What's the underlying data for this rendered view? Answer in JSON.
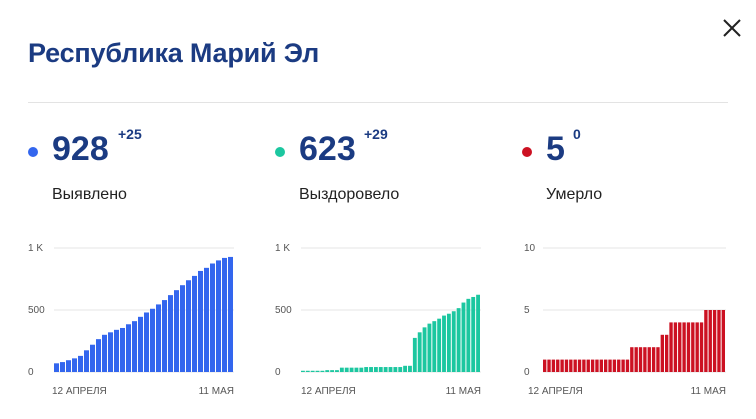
{
  "header": {
    "title": "Республика Марий Эл",
    "close_icon": "close-icon"
  },
  "stats": [
    {
      "key": "cases",
      "value": "928",
      "delta": "+25",
      "label": "Выявлено",
      "color": "#3366ee"
    },
    {
      "key": "recovered",
      "value": "623",
      "delta": "+29",
      "label": "Выздоровело",
      "color": "#1cc7a0"
    },
    {
      "key": "deaths",
      "value": "5",
      "delta": "0",
      "label": "Умерло",
      "color": "#cc1122"
    }
  ],
  "chart_data": [
    {
      "type": "bar",
      "series": [
        {
          "name": "Выявлено",
          "values": [
            70,
            80,
            95,
            110,
            130,
            175,
            220,
            265,
            300,
            320,
            340,
            355,
            385,
            410,
            445,
            480,
            510,
            545,
            580,
            620,
            660,
            700,
            740,
            775,
            815,
            840,
            875,
            900,
            920,
            928
          ]
        }
      ],
      "y_ticks": [
        "0",
        "500",
        "1 K"
      ],
      "y_tick_values": [
        0,
        500,
        1000
      ],
      "ylim": [
        0,
        1000
      ],
      "x_labels": [
        "12 АПРЕЛЯ",
        "11 МАЯ"
      ],
      "grid": true
    },
    {
      "type": "bar",
      "series": [
        {
          "name": "Выздоровело",
          "values": [
            10,
            10,
            10,
            10,
            10,
            15,
            15,
            15,
            35,
            35,
            35,
            35,
            35,
            40,
            40,
            40,
            40,
            40,
            40,
            40,
            40,
            50,
            50,
            275,
            320,
            360,
            390,
            410,
            430,
            455,
            470,
            490,
            515,
            560,
            590,
            605,
            623
          ]
        }
      ],
      "y_ticks": [
        "0",
        "500",
        "1 K"
      ],
      "y_tick_values": [
        0,
        500,
        1000
      ],
      "ylim": [
        0,
        1000
      ],
      "x_labels": [
        "12 АПРЕЛЯ",
        "11 МАЯ"
      ],
      "grid": true
    },
    {
      "type": "bar",
      "series": [
        {
          "name": "Умерло",
          "values": [
            1,
            1,
            1,
            1,
            1,
            1,
            1,
            1,
            1,
            1,
            1,
            1,
            1,
            1,
            1,
            1,
            1,
            1,
            1,
            1,
            2,
            2,
            2,
            2,
            2,
            2,
            2,
            3,
            3,
            4,
            4,
            4,
            4,
            4,
            4,
            4,
            4,
            5,
            5,
            5,
            5,
            5
          ]
        }
      ],
      "y_ticks": [
        "0",
        "5",
        "10"
      ],
      "y_tick_values": [
        0,
        5,
        10
      ],
      "ylim": [
        0,
        10
      ],
      "x_labels": [
        "12 АПРЕЛЯ",
        "11 МАЯ"
      ],
      "grid": true
    }
  ]
}
